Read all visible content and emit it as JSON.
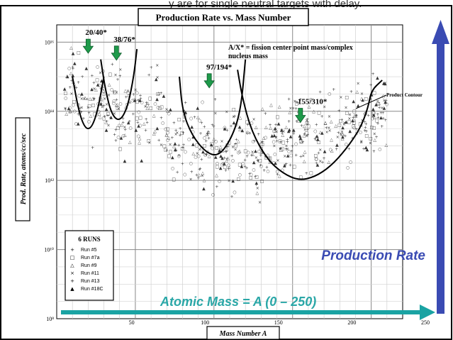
{
  "header_snippet": "y are for single neutral targets with delay.",
  "chart_data": {
    "type": "scatter",
    "title": "Production Rate vs. Mass Number",
    "xlabel": "Mass Number A",
    "ylabel": "Prod. Rate, atoms/cc/sec",
    "xlim": [
      0,
      220
    ],
    "ylim_exp": [
      8,
      16.5
    ],
    "log_y": true,
    "grid": true,
    "x_ticks": [
      "50",
      "100",
      "150",
      "200",
      "250"
    ],
    "x_tick_values": [
      50,
      100,
      150,
      200,
      250
    ],
    "y_ticks": [
      "10⁸",
      "10¹⁰",
      "10¹²",
      "10¹⁴",
      "10¹⁶"
    ],
    "y_tick_exps": [
      8,
      10,
      12,
      14,
      16
    ],
    "annotation": "A/X* = fission center point mass/complex nucleus mass",
    "product_contour_label": "Product Contour",
    "fission_markers": [
      {
        "label": "20/40*",
        "A": 20,
        "exp": 15.8
      },
      {
        "label": "38/76*",
        "A": 38,
        "exp": 15.6
      },
      {
        "label": "97/194*",
        "A": 97,
        "exp": 14.8
      },
      {
        "label": "155/310*",
        "A": 155,
        "exp": 13.8
      }
    ],
    "contours": [
      {
        "name": "20/40",
        "points": [
          [
            10,
            15.0
          ],
          [
            14,
            14.0
          ],
          [
            18,
            13.5
          ],
          [
            22,
            13.5
          ],
          [
            26,
            14.0
          ],
          [
            30,
            15.0
          ]
        ]
      },
      {
        "name": "38/76",
        "points": [
          [
            28,
            15.5
          ],
          [
            31,
            14.6
          ],
          [
            35,
            13.9
          ],
          [
            40,
            13.7
          ],
          [
            45,
            14.1
          ],
          [
            49,
            15.0
          ],
          [
            51,
            15.8
          ]
        ]
      },
      {
        "name": "97/194",
        "points": [
          [
            78,
            15.0
          ],
          [
            80,
            14.0
          ],
          [
            86,
            13.3
          ],
          [
            95,
            12.8
          ],
          [
            103,
            12.7
          ],
          [
            111,
            13.2
          ],
          [
            117,
            14.0
          ],
          [
            120,
            15.5
          ]
        ]
      },
      {
        "name": "155/310",
        "points": [
          [
            115,
            15.2
          ],
          [
            118,
            14.4
          ],
          [
            124,
            13.4
          ],
          [
            134,
            12.6
          ],
          [
            144,
            12.2
          ],
          [
            154,
            12.0
          ],
          [
            164,
            12.1
          ],
          [
            174,
            12.4
          ],
          [
            184,
            12.9
          ],
          [
            193,
            13.5
          ],
          [
            198,
            14.1
          ],
          [
            200,
            14.6
          ],
          [
            207,
            14.9
          ]
        ]
      }
    ],
    "legend": {
      "title": "6 RUNS",
      "entries": [
        {
          "label": "Run #5",
          "marker": "+"
        },
        {
          "label": "Run #7a",
          "marker": "□"
        },
        {
          "label": "Run #9",
          "marker": "△"
        },
        {
          "label": "Run #11",
          "marker": "×"
        },
        {
          "label": "Run #13",
          "marker": "+"
        },
        {
          "label": "Run #18C",
          "marker": "▲"
        }
      ],
      "placement": "bottom-left"
    }
  },
  "overlay": {
    "production_rate_label": "Production Rate",
    "atomic_mass_label": "Atomic Mass = A (0 – 250)",
    "arrow_color": "#3a4bb3",
    "mass_arrow_color": "#1aa3a3",
    "marker_arrow_color": "#1e9a4a",
    "production_text_color": "#3a4bb3",
    "mass_text_color": "#2aa7a7"
  }
}
